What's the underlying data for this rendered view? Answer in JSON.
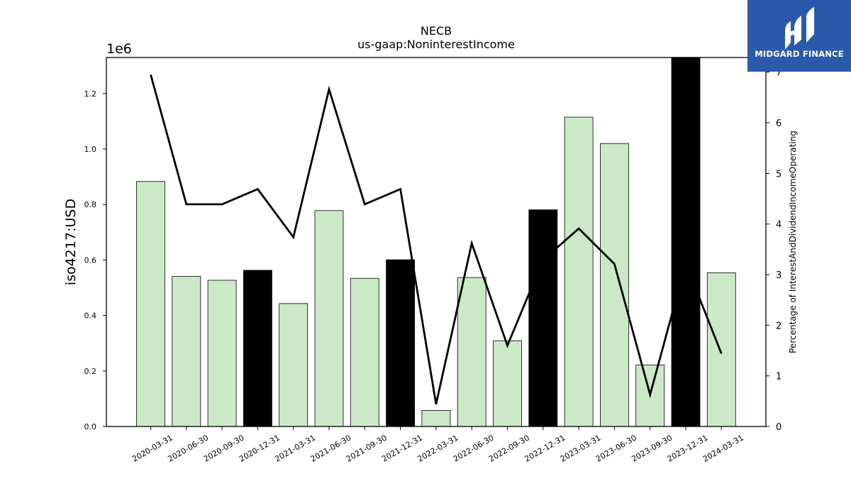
{
  "logo": {
    "text": "MIDGARD FINANCE",
    "background": "#2b5aad",
    "icon": "midgard-m-logo-icon"
  },
  "chart_data": {
    "type": "bar",
    "title": "NECB",
    "subtitle": "us-gaap:NoninterestIncome",
    "ylabel": "iso4217:USD",
    "y_offset_label": "1e6",
    "y2label": "Percentage of InterestAndDividendIncomeOperating",
    "ylim": [
      0,
      1.33
    ],
    "y2lim": [
      0,
      7.29
    ],
    "yticks": [
      "0.0",
      "0.2",
      "0.4",
      "0.6",
      "0.8",
      "1.0",
      "1.2"
    ],
    "y2ticks": [
      "0",
      "1",
      "2",
      "3",
      "4",
      "5",
      "6",
      "7"
    ],
    "categories": [
      "2020-03-31",
      "2020-06-30",
      "2020-09-30",
      "2020-12-31",
      "2021-03-31",
      "2021-06-30",
      "2021-09-30",
      "2021-12-31",
      "2022-03-31",
      "2022-06-30",
      "2022-09-30",
      "2022-12-31",
      "2023-03-31",
      "2023-06-30",
      "2023-09-30",
      "2023-12-31",
      "2024-03-31"
    ],
    "series": [
      {
        "type": "bar",
        "values": [
          0.883,
          0.541,
          0.527,
          0.563,
          0.443,
          0.778,
          0.534,
          0.601,
          0.058,
          0.537,
          0.309,
          0.781,
          1.115,
          1.02,
          0.222,
          1.33,
          0.554
        ],
        "highlight": [
          false,
          false,
          false,
          true,
          false,
          false,
          false,
          true,
          false,
          false,
          false,
          true,
          false,
          false,
          false,
          true,
          false
        ],
        "color": "#cce9c7",
        "highlight_color": "#000000"
      },
      {
        "type": "line",
        "axis": "right",
        "values": [
          6.95,
          4.39,
          4.39,
          4.69,
          3.74,
          6.66,
          4.39,
          4.69,
          0.44,
          3.62,
          1.6,
          3.29,
          3.91,
          3.21,
          0.63,
          3.22,
          1.44
        ],
        "color": "#000000"
      }
    ]
  }
}
